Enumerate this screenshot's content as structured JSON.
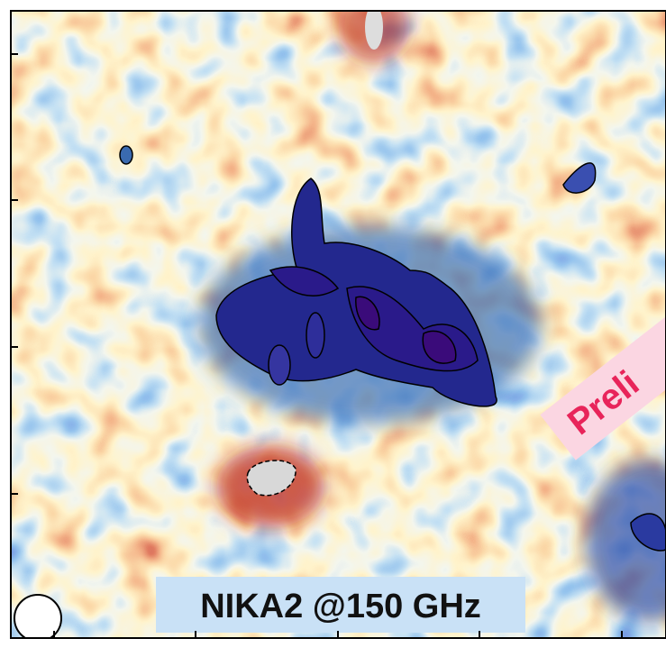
{
  "map": {
    "label": "NIKA2 @150 GHz",
    "watermark": "Preli"
  }
}
